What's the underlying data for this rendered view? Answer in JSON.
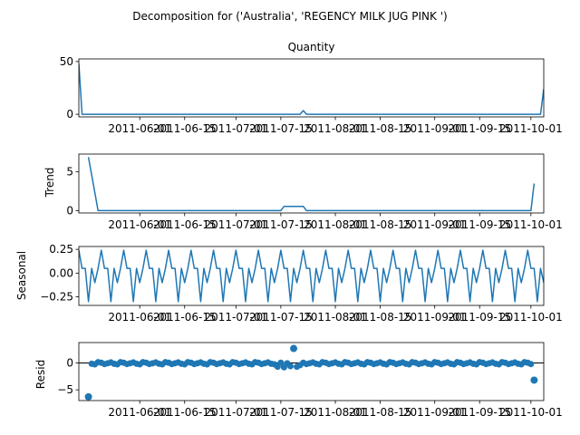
{
  "figure": {
    "suptitle": "Decomposition for ('Australia', 'REGENCY MILK JUG PINK ')",
    "line_color": "#1f77b4"
  },
  "chart_data": [
    {
      "type": "line",
      "title": "Quantity",
      "ylabel": "",
      "ylim": [
        -2.5,
        52.5
      ],
      "yticks": [
        "0",
        "50"
      ],
      "xticks": [
        "2011-06-01",
        "2011-06-15",
        "2011-07-01",
        "2011-07-15",
        "2011-08-01",
        "2011-08-15",
        "2011-09-01",
        "2011-09-15",
        "2011-10-01"
      ],
      "x_start": "2011-05-13",
      "x_end": "2011-10-05",
      "series": [
        {
          "points": [
            [
              "2011-05-13",
              48
            ],
            [
              "2011-05-14",
              0
            ],
            [
              "2011-07-21",
              0
            ],
            [
              "2011-07-22",
              3.5
            ],
            [
              "2011-07-23",
              0
            ],
            [
              "2011-10-04",
              0
            ],
            [
              "2011-10-05",
              24
            ]
          ]
        }
      ]
    },
    {
      "type": "line",
      "title": "",
      "ylabel": "Trend",
      "ylim": [
        -0.3,
        7.3
      ],
      "yticks": [
        "0",
        "5"
      ],
      "xticks": [
        "2011-06-01",
        "2011-06-15",
        "2011-07-01",
        "2011-07-15",
        "2011-08-01",
        "2011-08-15",
        "2011-09-01",
        "2011-09-15",
        "2011-10-01"
      ],
      "x_start": "2011-05-13",
      "x_end": "2011-10-05",
      "series": [
        {
          "points": [
            [
              "2011-05-16",
              6.9
            ],
            [
              "2011-05-19",
              0
            ],
            [
              "2011-07-15",
              0
            ],
            [
              "2011-07-16",
              0.55
            ],
            [
              "2011-07-22",
              0.55
            ],
            [
              "2011-07-23",
              0
            ],
            [
              "2011-10-01",
              0
            ],
            [
              "2011-10-02",
              3.5
            ]
          ]
        }
      ]
    },
    {
      "type": "line",
      "title": "",
      "ylabel": "Seasonal",
      "ylim": [
        -0.34,
        0.28
      ],
      "yticks": [
        "0.25",
        "0.00",
        "−0.25"
      ],
      "xticks": [
        "2011-06-01",
        "2011-06-15",
        "2011-07-01",
        "2011-07-15",
        "2011-08-01",
        "2011-08-15",
        "2011-09-01",
        "2011-09-15",
        "2011-10-01"
      ],
      "x_start": "2011-05-13",
      "x_end": "2011-10-05",
      "series": [
        {
          "pattern": [
            0.24,
            0.05,
            0.05,
            -0.3,
            0.05,
            -0.1,
            0.05
          ],
          "points": []
        }
      ]
    },
    {
      "type": "scatter",
      "title": "",
      "ylabel": "Resid",
      "ylim": [
        -7,
        3.8
      ],
      "yticks": [
        "0",
        "−5"
      ],
      "xticks": [
        "2011-06-01",
        "2011-06-15",
        "2011-07-01",
        "2011-07-15",
        "2011-08-01",
        "2011-08-15",
        "2011-09-01",
        "2011-09-15",
        "2011-10-01"
      ],
      "x_start": "2011-05-13",
      "x_end": "2011-10-05",
      "baseline": 0,
      "outliers": [
        [
          "2011-05-16",
          -6.3
        ],
        [
          "2011-07-19",
          2.7
        ],
        [
          "2011-10-02",
          -3.2
        ]
      ],
      "near_zero": [
        [
          "2011-07-14",
          -0.7
        ],
        [
          "2011-07-16",
          -0.8
        ],
        [
          "2011-07-18",
          -0.6
        ],
        [
          "2011-07-20",
          -0.7
        ],
        [
          "2011-07-21",
          -0.4
        ]
      ]
    }
  ]
}
